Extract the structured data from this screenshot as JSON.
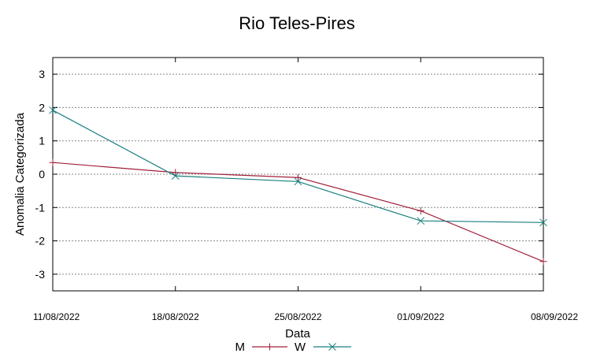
{
  "chart_data": {
    "type": "line",
    "title": "Rio Teles-Pires",
    "xlabel": "Data",
    "ylabel": "Anomalia Categorizada",
    "categories": [
      "11/08/2022",
      "18/08/2022",
      "25/08/2022",
      "01/09/2022",
      "08/09/2022"
    ],
    "ylim": [
      -3.5,
      3.5
    ],
    "yticks": [
      "3",
      "2",
      "1",
      "0",
      "-1",
      "-2",
      "-3"
    ],
    "grid": true,
    "legend_position": "bottom",
    "series": [
      {
        "name": "M",
        "values": [
          0.35,
          0.05,
          -0.1,
          -1.1,
          -2.62
        ],
        "color": "#a0203a",
        "marker": "plus"
      },
      {
        "name": "W",
        "values": [
          1.92,
          -0.05,
          -0.22,
          -1.4,
          -1.45
        ],
        "color": "#1a7f80",
        "marker": "cross"
      }
    ]
  }
}
